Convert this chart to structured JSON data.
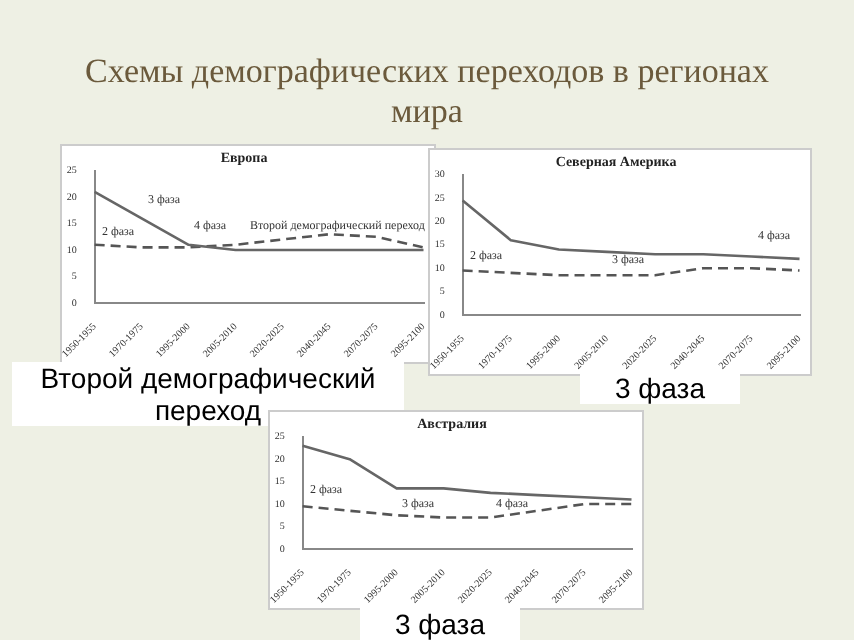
{
  "chart_data": [
    {
      "type": "other",
      "title": "Схемы демографических переходов в регионах мира"
    },
    {
      "type": "line",
      "title": "Европа",
      "categories": [
        "1950-1955",
        "1970-1975",
        "1995-2000",
        "2005-2010",
        "2020-2025",
        "2040-2045",
        "2070-2075",
        "2095-2100"
      ],
      "series": [
        {
          "color": "#666666",
          "line_style": "solid",
          "values": [
            21,
            16,
            11,
            10,
            10,
            10,
            10,
            10
          ]
        },
        {
          "color": "#555555",
          "line_style": "dashed",
          "values": [
            11,
            10.5,
            10.5,
            11,
            12,
            13,
            12.5,
            10.5
          ]
        }
      ],
      "ylim": [
        0,
        25
      ],
      "yticks": [
        0,
        5,
        10,
        15,
        20,
        25
      ],
      "grid": false,
      "legend": false,
      "marker": "none",
      "annotations": [
        "3 фаза",
        "2 фаза",
        "4 фаза",
        "Второй демографический переход",
        "Второй демографический переход"
      ]
    },
    {
      "type": "line",
      "title": "Северная Америка",
      "categories": [
        "1950-1955",
        "1970-1975",
        "1995-2000",
        "2005-2010",
        "2020-2025",
        "2040-2045",
        "2070-2075",
        "2095-2100"
      ],
      "series": [
        {
          "color": "#666666",
          "line_style": "solid",
          "values": [
            24.5,
            16,
            14,
            13.5,
            13,
            13,
            12.5,
            12
          ]
        },
        {
          "color": "#555555",
          "line_style": "dashed",
          "values": [
            9.5,
            9,
            8.5,
            8.5,
            8.5,
            10,
            10,
            9.5
          ]
        }
      ],
      "ylim": [
        0,
        30
      ],
      "yticks": [
        0,
        5,
        10,
        15,
        20,
        25,
        30
      ],
      "grid": false,
      "legend": false,
      "marker": "none",
      "annotations": [
        "2 фаза",
        "3 фаза",
        "4 фаза",
        "3 фаза"
      ]
    },
    {
      "type": "line",
      "title": "Австралия",
      "categories": [
        "1950-1955",
        "1970-1975",
        "1995-2000",
        "2005-2010",
        "2020-2025",
        "2040-2045",
        "2070-2075",
        "2095-2100"
      ],
      "series": [
        {
          "color": "#666666",
          "line_style": "solid",
          "values": [
            23,
            20,
            13.5,
            13.5,
            12.5,
            12,
            11.5,
            11
          ]
        },
        {
          "color": "#555555",
          "line_style": "dashed",
          "values": [
            9.5,
            8.5,
            7.5,
            7,
            7,
            8.5,
            10,
            10
          ]
        }
      ],
      "ylim": [
        0,
        25
      ],
      "yticks": [
        0,
        5,
        10,
        15,
        20,
        25
      ],
      "grid": false,
      "legend": false,
      "marker": "none",
      "annotations": [
        "2 фаза",
        "3 фаза",
        "4 фаза",
        "3 фаза"
      ]
    }
  ]
}
